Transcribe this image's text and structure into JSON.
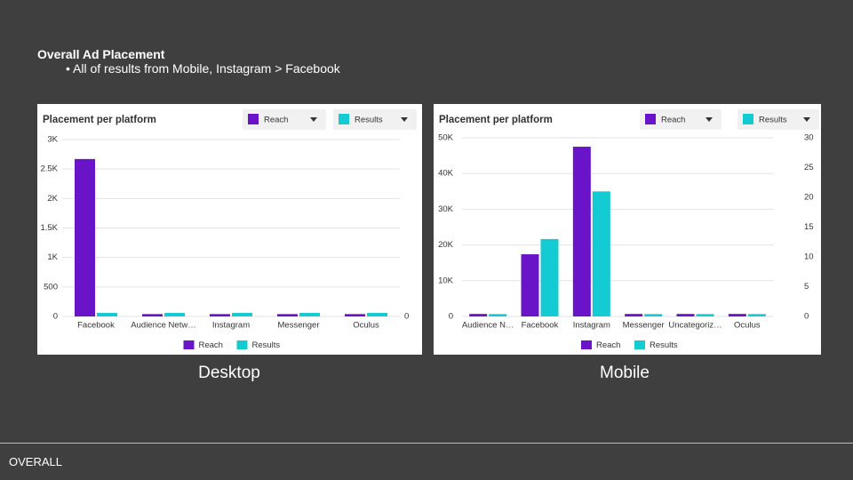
{
  "slide": {
    "title": "Overall Ad Placement",
    "bullets": [
      "All of results from Mobile, Instagram > Facebook"
    ],
    "captions": [
      "Desktop",
      "Mobile"
    ],
    "footer": "OVERALL"
  },
  "chart_data": [
    {
      "type": "bar",
      "title": "Placement per platform",
      "categories": [
        "Facebook",
        "Audience Netw…",
        "Instagram",
        "Messenger",
        "Oculus"
      ],
      "series": [
        {
          "name": "Reach",
          "color": "#6a14c9",
          "values": [
            2670,
            40,
            40,
            40,
            40
          ]
        },
        {
          "name": "Results",
          "color": "#13ccd3",
          "axis": "y2",
          "values": [
            0.02,
            0.02,
            0.02,
            0.02,
            0.02
          ]
        }
      ],
      "ylim": [
        0,
        3000
      ],
      "yticks": [
        0,
        500,
        {
          "value": 1000,
          "label": "1K"
        },
        {
          "value": 1500,
          "label": "1.5K"
        },
        {
          "value": 2000,
          "label": "2K"
        },
        {
          "value": 2500,
          "label": "2.5K"
        },
        {
          "value": 3000,
          "label": "3K"
        }
      ],
      "y2lim": [
        0,
        1
      ],
      "y2ticks": [
        0
      ],
      "grid": true,
      "legend": "bottom"
    },
    {
      "type": "bar",
      "title": "Placement per platform",
      "categories": [
        "Audience N…",
        "Facebook",
        "Instagram",
        "Messenger",
        "Uncategoriz…",
        "Oculus"
      ],
      "series": [
        {
          "name": "Reach",
          "color": "#6a14c9",
          "values": [
            700,
            17400,
            47500,
            700,
            700,
            700
          ]
        },
        {
          "name": "Results",
          "color": "#13ccd3",
          "axis": "y2",
          "values": [
            0.4,
            13,
            21,
            0.4,
            0.4,
            0.4
          ]
        }
      ],
      "ylim": [
        0,
        50000
      ],
      "yticks": [
        0,
        {
          "value": 10000,
          "label": "10K"
        },
        {
          "value": 20000,
          "label": "20K"
        },
        {
          "value": 30000,
          "label": "30K"
        },
        {
          "value": 40000,
          "label": "40K"
        },
        {
          "value": 50000,
          "label": "50K"
        }
      ],
      "y2lim": [
        0,
        30
      ],
      "y2ticks": [
        0,
        5,
        10,
        15,
        20,
        25,
        30
      ],
      "grid": true,
      "legend": "bottom"
    }
  ]
}
